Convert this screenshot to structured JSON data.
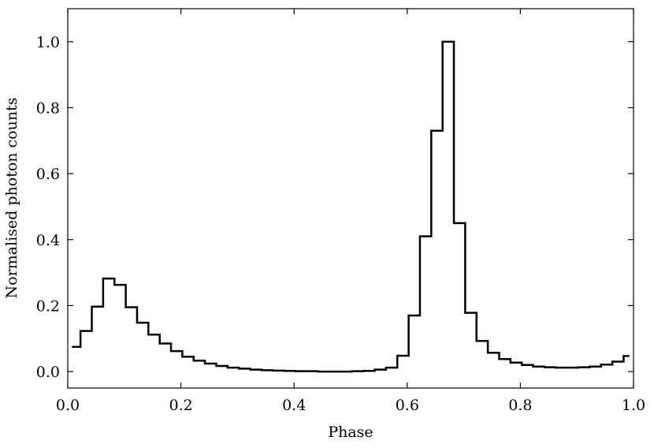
{
  "chart_data": {
    "type": "line",
    "style": "step-histogram",
    "title": "",
    "xlabel": "Phase",
    "ylabel": "Normalised photon counts",
    "xlim": [
      0.0,
      1.0
    ],
    "ylim": [
      -0.05,
      1.1
    ],
    "xticks": [
      0.0,
      0.2,
      0.4,
      0.6,
      0.8,
      1.0
    ],
    "xtick_labels": [
      "0.0",
      "0.2",
      "0.4",
      "0.6",
      "0.8",
      "1.0"
    ],
    "yticks": [
      0.0,
      0.2,
      0.4,
      0.6,
      0.8,
      1.0
    ],
    "ytick_labels": [
      "0.0",
      "0.2",
      "0.4",
      "0.6",
      "0.8",
      "1.0"
    ],
    "grid": false,
    "legend": "none",
    "line_color": "#000000",
    "bin_edges": [
      0.0075,
      0.0225,
      0.0425,
      0.0625,
      0.0825,
      0.1025,
      0.1225,
      0.1425,
      0.1625,
      0.1825,
      0.2025,
      0.2225,
      0.2425,
      0.2625,
      0.2825,
      0.3025,
      0.3225,
      0.3425,
      0.3625,
      0.3825,
      0.4025,
      0.4225,
      0.4425,
      0.4625,
      0.4825,
      0.5025,
      0.5225,
      0.5425,
      0.5625,
      0.5825,
      0.6025,
      0.6225,
      0.6425,
      0.6625,
      0.6825,
      0.7025,
      0.7225,
      0.7425,
      0.7625,
      0.7825,
      0.8025,
      0.8225,
      0.8425,
      0.8625,
      0.8825,
      0.9025,
      0.9225,
      0.9425,
      0.9625,
      0.9825,
      0.9925
    ],
    "values": [
      0.075,
      0.123,
      0.197,
      0.282,
      0.263,
      0.195,
      0.148,
      0.112,
      0.085,
      0.062,
      0.045,
      0.033,
      0.024,
      0.017,
      0.012,
      0.009,
      0.006,
      0.004,
      0.003,
      0.002,
      0.001,
      0.001,
      0.0,
      0.0,
      0.0,
      0.001,
      0.002,
      0.006,
      0.012,
      0.048,
      0.17,
      0.41,
      0.73,
      1.0,
      0.45,
      0.178,
      0.093,
      0.057,
      0.038,
      0.027,
      0.02,
      0.015,
      0.013,
      0.012,
      0.012,
      0.013,
      0.015,
      0.021,
      0.03,
      0.047
    ]
  }
}
